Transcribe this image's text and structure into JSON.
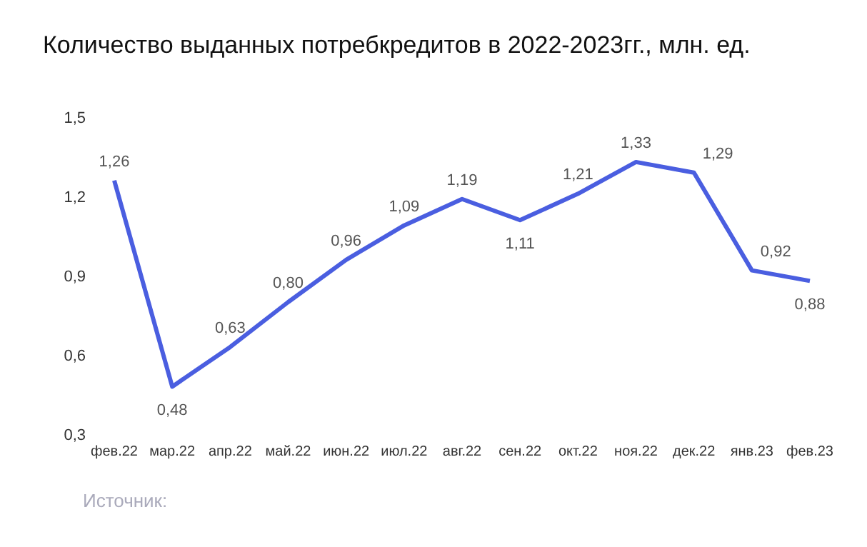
{
  "chart_data": {
    "type": "line",
    "title": "Количество выданных потребкредитов в 2022-2023гг., млн. ед.",
    "categories": [
      "фев.22",
      "мар.22",
      "апр.22",
      "май.22",
      "июн.22",
      "июл.22",
      "авг.22",
      "сен.22",
      "окт.22",
      "ноя.22",
      "дек.22",
      "янв.23",
      "фев.23"
    ],
    "series": [
      {
        "color": "#4a5ee0",
        "values": [
          1.26,
          0.48,
          0.63,
          0.8,
          0.96,
          1.09,
          1.19,
          1.11,
          1.21,
          1.33,
          1.29,
          0.92,
          0.88
        ],
        "value_labels": [
          "1,26",
          "0,48",
          "0,63",
          "0,80",
          "0,96",
          "1,09",
          "1,19",
          "1,11",
          "1,21",
          "1,33",
          "1,29",
          "0,92",
          "0,88"
        ]
      }
    ],
    "ylim": [
      0.3,
      1.5
    ],
    "yticks": [
      {
        "value": 0.3,
        "label": "0,3"
      },
      {
        "value": 0.6,
        "label": "0,6"
      },
      {
        "value": 0.9,
        "label": "0,9"
      },
      {
        "value": 1.2,
        "label": "1,2"
      },
      {
        "value": 1.5,
        "label": "1,5"
      }
    ],
    "grid": false,
    "legend": false,
    "marker": "none",
    "line_style": "solid",
    "annotations": [
      "Источник:"
    ]
  }
}
